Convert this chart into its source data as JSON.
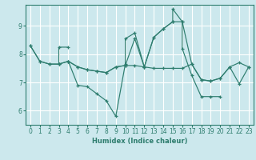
{
  "xlabel": "Humidex (Indice chaleur)",
  "bg_color": "#cce8ed",
  "grid_color": "#ffffff",
  "line_color": "#2e7d6e",
  "xlim": [
    -0.5,
    23.5
  ],
  "ylim": [
    5.5,
    9.75
  ],
  "yticks": [
    6,
    7,
    8,
    9
  ],
  "xticks": [
    0,
    1,
    2,
    3,
    4,
    5,
    6,
    7,
    8,
    9,
    10,
    11,
    12,
    13,
    14,
    15,
    16,
    17,
    18,
    19,
    20,
    21,
    22,
    23
  ],
  "lines": [
    [
      [
        0,
        8.3
      ],
      [
        1,
        7.75
      ],
      [
        2,
        7.65
      ],
      [
        3,
        7.65
      ],
      [
        3,
        8.25
      ],
      [
        4,
        8.25
      ]
    ],
    [
      [
        0,
        8.3
      ],
      [
        1,
        7.75
      ],
      [
        2,
        7.65
      ],
      [
        3,
        7.65
      ],
      [
        4,
        7.75
      ],
      [
        5,
        7.55
      ],
      [
        6,
        7.45
      ],
      [
        7,
        7.4
      ],
      [
        8,
        7.35
      ],
      [
        9,
        7.55
      ],
      [
        10,
        7.6
      ],
      [
        11,
        7.6
      ],
      [
        12,
        7.55
      ],
      [
        13,
        7.5
      ],
      [
        14,
        7.5
      ],
      [
        15,
        7.5
      ],
      [
        16,
        7.5
      ],
      [
        17,
        7.65
      ],
      [
        18,
        7.1
      ],
      [
        19,
        7.05
      ],
      [
        20,
        7.15
      ],
      [
        21,
        7.55
      ],
      [
        22,
        7.7
      ],
      [
        23,
        7.55
      ]
    ],
    [
      [
        3,
        7.65
      ],
      [
        4,
        7.75
      ],
      [
        5,
        6.9
      ],
      [
        6,
        6.85
      ],
      [
        7,
        6.6
      ],
      [
        8,
        6.35
      ],
      [
        9,
        5.8
      ],
      [
        10,
        7.65
      ],
      [
        10,
        8.55
      ],
      [
        11,
        8.75
      ],
      [
        12,
        7.55
      ],
      [
        13,
        8.6
      ],
      [
        14,
        8.9
      ],
      [
        15,
        9.15
      ],
      [
        15,
        9.6
      ],
      [
        16,
        9.15
      ],
      [
        16,
        8.2
      ],
      [
        17,
        7.25
      ],
      [
        18,
        6.5
      ],
      [
        19,
        6.5
      ],
      [
        20,
        6.5
      ]
    ],
    [
      [
        4,
        7.75
      ],
      [
        5,
        7.55
      ],
      [
        6,
        7.45
      ],
      [
        7,
        7.4
      ],
      [
        8,
        7.35
      ],
      [
        9,
        7.55
      ],
      [
        10,
        7.6
      ],
      [
        11,
        8.55
      ],
      [
        12,
        7.55
      ],
      [
        13,
        8.6
      ],
      [
        14,
        8.9
      ],
      [
        15,
        9.15
      ],
      [
        16,
        9.15
      ],
      [
        17,
        7.65
      ],
      [
        18,
        7.1
      ],
      [
        19,
        7.05
      ],
      [
        20,
        7.15
      ],
      [
        21,
        7.55
      ],
      [
        22,
        6.95
      ],
      [
        23,
        7.55
      ]
    ]
  ]
}
